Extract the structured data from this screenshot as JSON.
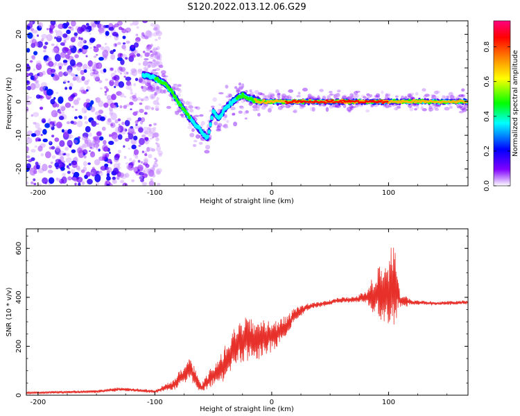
{
  "title": "S120.2022.013.12.06.G29",
  "chart_data": [
    {
      "type": "heatmap",
      "xlabel": "Height of straight line (km)",
      "ylabel": "Frequency (Hz)",
      "xlim": [
        -210,
        168
      ],
      "ylim": [
        -25,
        24
      ],
      "xticks": [
        -200,
        -100,
        0,
        100
      ],
      "yticks": [
        -20,
        -10,
        0,
        10,
        20
      ],
      "colorbar": {
        "label": "Normalized spectral amplitude",
        "range": [
          0,
          0.95
        ],
        "ticks": [
          "0.0",
          "0.2",
          "0.4",
          "0.6",
          "0.8"
        ],
        "colors": [
          "#ffffff",
          "#8000ff",
          "#0000ff",
          "#00ffff",
          "#00ff00",
          "#ffff00",
          "#ff8000",
          "#ff0000",
          "#ff0080"
        ]
      },
      "ridge": {
        "x": [
          -110,
          -100,
          -90,
          -80,
          -70,
          -60,
          -55,
          -50,
          -45,
          -40,
          -30,
          -25,
          -20,
          -10,
          0,
          20,
          60,
          100,
          168
        ],
        "y": [
          8,
          7,
          5,
          0,
          -5,
          -9,
          -11,
          -3,
          -5,
          -2,
          1,
          2,
          1,
          0,
          0,
          0,
          0,
          0,
          0
        ],
        "amplitude": [
          0.35,
          0.45,
          0.45,
          0.5,
          0.45,
          0.4,
          0.4,
          0.35,
          0.4,
          0.4,
          0.45,
          0.5,
          0.5,
          0.7,
          0.75,
          0.8,
          0.8,
          0.78,
          0.75
        ]
      },
      "noise_region": [
        -210,
        -95
      ]
    },
    {
      "type": "line",
      "xlabel": "Height of straight line (km)",
      "ylabel": "SNR (10 * v/v)",
      "xlim": [
        -210,
        168
      ],
      "ylim": [
        0,
        680
      ],
      "xticks": [
        -200,
        -100,
        0,
        100
      ],
      "yticks": [
        0,
        200,
        400,
        600
      ],
      "color": "#e8302a",
      "series": [
        {
          "x": [
            -210,
            -150,
            -130,
            -100,
            -85,
            -70,
            -60,
            -40,
            -30,
            -20,
            -10,
            0,
            10,
            20,
            30,
            50,
            60,
            70,
            80,
            90,
            100,
            105,
            110,
            120,
            140,
            168
          ],
          "y": [
            10,
            15,
            25,
            15,
            40,
            110,
            30,
            130,
            210,
            230,
            230,
            240,
            270,
            330,
            360,
            380,
            390,
            390,
            400,
            410,
            420,
            470,
            385,
            380,
            375,
            380
          ],
          "noise": [
            4,
            6,
            8,
            6,
            20,
            50,
            20,
            70,
            80,
            85,
            85,
            65,
            45,
            25,
            15,
            10,
            12,
            12,
            25,
            100,
            140,
            180,
            30,
            10,
            8,
            8
          ]
        }
      ]
    }
  ]
}
